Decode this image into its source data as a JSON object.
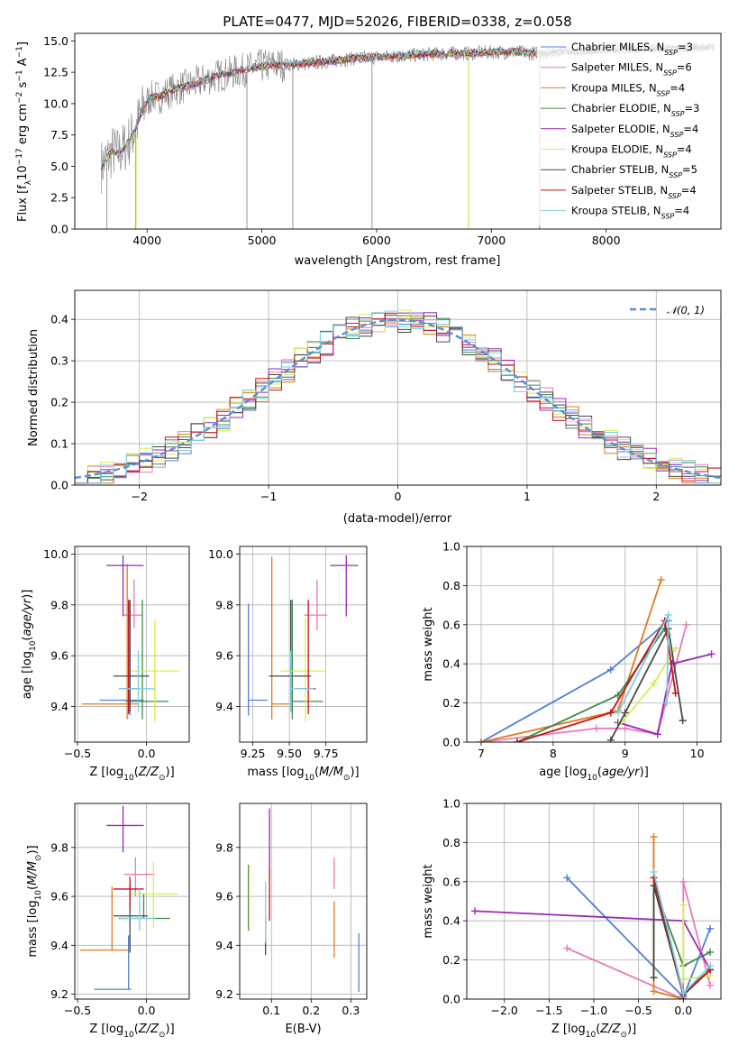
{
  "figure": {
    "title": "PLATE=0477, MJD=52026, FIBERID=0338, z=0.058"
  },
  "colors": {
    "Chabrier MILES": "#4f7fd6",
    "Salpeter MILES": "#ea7ab5",
    "Kroupa MILES": "#e07b1a",
    "Chabrier ELODIE": "#3e8a4a",
    "Salpeter ELODIE": "#9a2ab3",
    "Kroupa ELODIE": "#d6ee58",
    "Chabrier STELIB": "#484848",
    "Salpeter STELIB": "#c4121a",
    "Kroupa STELIB": "#7fcfe0",
    "data": "#808080",
    "normal": "#5b8ed6"
  },
  "chart_data": [
    {
      "id": "spectrum",
      "type": "line",
      "xlabel": "wavelength [Angstrom, rest frame]",
      "ylabel": "Flux [f_λ 10^-17 erg cm^-2 s^-1 A^-1]",
      "xlim": [
        3370,
        9000
      ],
      "ylim": [
        0,
        15.6
      ],
      "xticks": [
        4000,
        5000,
        6000,
        7000,
        8000
      ],
      "yticks": [
        0.0,
        2.5,
        5.0,
        7.5,
        10.0,
        12.5,
        15.0
      ],
      "grid": false,
      "legend_position": "right",
      "legend": [
        "Chabrier MILES, N_SSP=3",
        "Salpeter MILES, N_SSP=6",
        "Kroupa MILES, N_SSP=4",
        "Chabrier ELODIE, N_SSP=3",
        "Salpeter ELODIE, N_SSP=4",
        "Kroupa ELODIE, N_SSP=4",
        "Chabrier STELIB, N_SSP=5",
        "Salpeter STELIB, N_SSP=4",
        "Kroupa STELIB, N_SSP=4"
      ],
      "model_continuum": {
        "x": [
          3600,
          3650,
          3700,
          3750,
          3800,
          3850,
          3900,
          3950,
          4000,
          4050,
          4100,
          4200,
          4300,
          4400,
          4500,
          4600,
          4700,
          4800,
          4900,
          5000,
          5200,
          5400,
          5600,
          5800,
          6000,
          6200,
          6400,
          6600,
          6800,
          7000,
          7200,
          7400,
          7600,
          7800,
          8000,
          8200,
          8400,
          8600,
          8800,
          8950
        ],
        "y": [
          5.0,
          5.6,
          6.2,
          6.0,
          6.5,
          7.1,
          8.0,
          9.3,
          10.2,
          10.6,
          10.5,
          11.0,
          11.3,
          11.5,
          11.9,
          12.2,
          12.4,
          12.6,
          12.8,
          13.0,
          13.1,
          13.2,
          13.4,
          13.6,
          13.7,
          13.8,
          13.9,
          14.0,
          14.0,
          14.1,
          14.1,
          14.0,
          14.1,
          14.2,
          14.3,
          14.3,
          14.4,
          14.4,
          14.5,
          14.5
        ]
      },
      "data_spikes_down": [
        {
          "x": 3650,
          "y": 0.0
        },
        {
          "x": 3900,
          "y": 0.0
        },
        {
          "x": 4870,
          "y": 0.0
        },
        {
          "x": 5270,
          "y": 0.0
        },
        {
          "x": 5960,
          "y": 0.0
        },
        {
          "x": 6800,
          "y": 0.0
        },
        {
          "x": 7420,
          "y": 0.0
        }
      ]
    },
    {
      "id": "residuals",
      "type": "histogram",
      "xlabel": "(data-model)/error",
      "ylabel": "Normed distribution",
      "xlim": [
        -2.5,
        2.5
      ],
      "ylim": [
        0,
        0.47
      ],
      "xticks": [
        -2,
        -1,
        0,
        1,
        2
      ],
      "yticks": [
        0.0,
        0.1,
        0.2,
        0.3,
        0.4
      ],
      "grid": true,
      "legend_position": "top-right",
      "legend": [
        "𝒩(0, 1)"
      ],
      "bin_width": 0.1,
      "bin_start": -2.5
    },
    {
      "id": "age-vs-Z",
      "type": "errorbar",
      "xlabel": "Z [log10(Z/Z⊙)]",
      "ylabel": "age  [log10(age/yr)]",
      "xlim": [
        -0.52,
        0.31
      ],
      "ylim": [
        9.26,
        10.03
      ],
      "xticks": [
        -0.5,
        0.0
      ],
      "yticks": [
        9.4,
        9.6,
        9.8,
        10.0
      ],
      "grid": true,
      "points": [
        {
          "model": "Chabrier MILES",
          "x": -0.12,
          "xerr": [
            0.22,
            0.1
          ],
          "y": 9.425,
          "yerr": [
            0.06,
            0.38
          ]
        },
        {
          "model": "Salpeter MILES",
          "x": -0.09,
          "xerr": [
            0.08,
            0.06
          ],
          "y": 9.76,
          "yerr": [
            0.05,
            0.14
          ]
        },
        {
          "model": "Kroupa MILES",
          "x": -0.14,
          "xerr": [
            0.33,
            0.08
          ],
          "y": 9.41,
          "yerr": [
            0.06,
            0.55
          ]
        },
        {
          "model": "Chabrier ELODIE",
          "x": -0.03,
          "xerr": [
            0.12,
            0.19
          ],
          "y": 9.42,
          "yerr": [
            0.07,
            0.4
          ]
        },
        {
          "model": "Salpeter ELODIE",
          "x": -0.17,
          "xerr": [
            0.12,
            0.15
          ],
          "y": 9.955,
          "yerr": [
            0.2,
            0.04
          ]
        },
        {
          "model": "Kroupa ELODIE",
          "x": 0.06,
          "xerr": [
            0.18,
            0.18
          ],
          "y": 9.54,
          "yerr": [
            0.2,
            0.2
          ]
        },
        {
          "model": "Chabrier STELIB",
          "x": -0.12,
          "xerr": [
            0.12,
            0.14
          ],
          "y": 9.52,
          "yerr": [
            0.14,
            0.3
          ]
        },
        {
          "model": "Salpeter STELIB",
          "x": -0.13,
          "xerr": [
            0.07,
            0.06
          ],
          "y": 9.47,
          "yerr": [
            0.1,
            0.35
          ]
        },
        {
          "model": "Kroupa STELIB",
          "x": -0.06,
          "xerr": [
            0.14,
            0.12
          ],
          "y": 9.47,
          "yerr": [
            0.09,
            0.15
          ]
        }
      ]
    },
    {
      "id": "age-vs-mass",
      "type": "errorbar",
      "xlabel": "mass [log10(M/M⊙)]",
      "ylabel": "",
      "xlim": [
        9.16,
        10.03
      ],
      "ylim": [
        9.26,
        10.03
      ],
      "xticks": [
        9.25,
        9.5,
        9.75
      ],
      "yticks": [
        9.4,
        9.6,
        9.8,
        10.0
      ],
      "grid": true,
      "points": [
        {
          "model": "Chabrier MILES",
          "x": 9.22,
          "xerr": [
            0.0,
            0.13
          ],
          "y": 9.425,
          "yerr": [
            0.06,
            0.38
          ]
        },
        {
          "model": "Salpeter MILES",
          "x": 9.69,
          "xerr": [
            0.09,
            0.07
          ],
          "y": 9.76,
          "yerr": [
            0.06,
            0.14
          ]
        },
        {
          "model": "Kroupa MILES",
          "x": 9.38,
          "xerr": [
            0.0,
            0.12
          ],
          "y": 9.41,
          "yerr": [
            0.06,
            0.58
          ]
        },
        {
          "model": "Chabrier ELODIE",
          "x": 9.52,
          "xerr": [
            0.0,
            0.21
          ],
          "y": 9.42,
          "yerr": [
            0.07,
            0.4
          ]
        },
        {
          "model": "Salpeter ELODIE",
          "x": 9.89,
          "xerr": [
            0.11,
            0.08
          ],
          "y": 9.955,
          "yerr": [
            0.2,
            0.04
          ]
        },
        {
          "model": "Kroupa ELODIE",
          "x": 9.61,
          "xerr": [
            0.17,
            0.14
          ],
          "y": 9.54,
          "yerr": [
            0.2,
            0.21
          ]
        },
        {
          "model": "Chabrier STELIB",
          "x": 9.51,
          "xerr": [
            0.15,
            0.14
          ],
          "y": 9.52,
          "yerr": [
            0.14,
            0.3
          ]
        },
        {
          "model": "Salpeter STELIB",
          "x": 9.63,
          "xerr": [
            0.08,
            0.05
          ],
          "y": 9.47,
          "yerr": [
            0.1,
            0.35
          ]
        },
        {
          "model": "Kroupa STELIB",
          "x": 9.51,
          "xerr": [
            0.0,
            0.16
          ],
          "y": 9.47,
          "yerr": [
            0.09,
            0.15
          ]
        }
      ]
    },
    {
      "id": "mass-weight-vs-age",
      "type": "line",
      "xlabel": "age  [log10(age/yr)]",
      "ylabel": "mass weight",
      "xlim": [
        6.8,
        10.33
      ],
      "ylim": [
        0,
        1.0
      ],
      "xticks": [
        7,
        8,
        9,
        10
      ],
      "yticks": [
        0.0,
        0.2,
        0.4,
        0.6,
        0.8,
        1.0
      ],
      "grid": true,
      "series": [
        {
          "model": "Chabrier MILES",
          "x": [
            7.0,
            8.8,
            9.6
          ],
          "y": [
            0.0,
            0.37,
            0.62
          ]
        },
        {
          "model": "Salpeter MILES",
          "x": [
            7.0,
            8.6,
            9.0,
            9.45,
            9.85
          ],
          "y": [
            0.0,
            0.07,
            0.07,
            0.04,
            0.6
          ]
        },
        {
          "model": "Kroupa MILES",
          "x": [
            7.0,
            8.9,
            9.5
          ],
          "y": [
            0.0,
            0.16,
            0.83
          ]
        },
        {
          "model": "Chabrier ELODIE",
          "x": [
            7.5,
            8.9,
            9.55
          ],
          "y": [
            0.0,
            0.24,
            0.58
          ]
        },
        {
          "model": "Salpeter ELODIE",
          "x": [
            8.9,
            9.45,
            9.65,
            10.2
          ],
          "y": [
            0.1,
            0.04,
            0.4,
            0.45
          ]
        },
        {
          "model": "Kroupa ELODIE",
          "x": [
            8.95,
            9.4,
            9.7
          ],
          "y": [
            0.1,
            0.3,
            0.48
          ]
        },
        {
          "model": "Chabrier STELIB",
          "x": [
            8.8,
            9.0,
            9.6,
            9.8
          ],
          "y": [
            0.01,
            0.15,
            0.58,
            0.11
          ]
        },
        {
          "model": "Salpeter STELIB",
          "x": [
            7.5,
            8.8,
            9.55,
            9.7
          ],
          "y": [
            0.0,
            0.15,
            0.62,
            0.25
          ]
        },
        {
          "model": "Kroupa STELIB",
          "x": [
            8.9,
            9.6,
            9.58
          ],
          "y": [
            0.15,
            0.65,
            0.2
          ]
        }
      ]
    },
    {
      "id": "mass-vs-Z",
      "type": "errorbar",
      "xlabel": "Z [log10(Z/Z⊙)]",
      "ylabel": "mass [log10(M/M⊙)]",
      "xlim": [
        -0.52,
        0.31
      ],
      "ylim": [
        9.18,
        9.98
      ],
      "xticks": [
        -0.5,
        0.0
      ],
      "yticks": [
        9.2,
        9.4,
        9.6,
        9.8
      ],
      "grid": true,
      "points": [
        {
          "model": "Chabrier MILES",
          "x": -0.13,
          "xerr": [
            0.25,
            0.02
          ],
          "y": 9.22,
          "yerr": [
            0.0,
            0.22
          ]
        },
        {
          "model": "Salpeter MILES",
          "x": -0.08,
          "xerr": [
            0.08,
            0.14
          ],
          "y": 9.69,
          "yerr": [
            0.09,
            0.07
          ]
        },
        {
          "model": "Kroupa MILES",
          "x": -0.25,
          "xerr": [
            0.23,
            0.13
          ],
          "y": 9.38,
          "yerr": [
            0.0,
            0.26
          ]
        },
        {
          "model": "Chabrier ELODIE",
          "x": -0.02,
          "xerr": [
            0.18,
            0.19
          ],
          "y": 9.51,
          "yerr": [
            0.0,
            0.1
          ]
        },
        {
          "model": "Salpeter ELODIE",
          "x": -0.17,
          "xerr": [
            0.12,
            0.15
          ],
          "y": 9.89,
          "yerr": [
            0.11,
            0.08
          ]
        },
        {
          "model": "Kroupa ELODIE",
          "x": 0.05,
          "xerr": [
            0.17,
            0.18
          ],
          "y": 9.61,
          "yerr": [
            0.14,
            0.13
          ]
        },
        {
          "model": "Chabrier STELIB",
          "x": -0.12,
          "xerr": [
            0.12,
            0.13
          ],
          "y": 9.52,
          "yerr": [
            0.15,
            0.14
          ]
        },
        {
          "model": "Salpeter STELIB",
          "x": -0.12,
          "xerr": [
            0.12,
            0.1
          ],
          "y": 9.63,
          "yerr": [
            0.08,
            0.05
          ]
        },
        {
          "model": "Kroupa STELIB",
          "x": -0.05,
          "xerr": [
            0.14,
            0.11
          ],
          "y": 9.51,
          "yerr": [
            0.05,
            0.12
          ]
        }
      ]
    },
    {
      "id": "mass-vs-EBV",
      "type": "errorbar",
      "xlabel": "E(B-V)",
      "ylabel": "",
      "xlim": [
        0.02,
        0.34
      ],
      "ylim": [
        9.18,
        9.98
      ],
      "xticks": [
        0.1,
        0.2,
        0.3
      ],
      "yticks": [
        9.2,
        9.4,
        9.6,
        9.8
      ],
      "grid": true,
      "points": [
        {
          "model": "Chabrier MILES",
          "x": 0.32,
          "y": 9.33,
          "yerr": [
            0.12,
            0.12
          ]
        },
        {
          "model": "Salpeter MILES",
          "x": 0.258,
          "y": 9.69,
          "yerr": [
            0.06,
            0.07
          ]
        },
        {
          "model": "Kroupa MILES",
          "x": 0.258,
          "y": 9.48,
          "yerr": [
            0.13,
            0.1
          ]
        },
        {
          "model": "Chabrier ELODIE",
          "x": 0.042,
          "y": 9.58,
          "yerr": [
            0.12,
            0.15
          ]
        },
        {
          "model": "Salpeter ELODIE",
          "x": 0.095,
          "y": 9.82,
          "yerr": [
            0.1,
            0.14
          ]
        },
        {
          "model": "Kroupa ELODIE",
          "x": 0.044,
          "y": 9.62,
          "yerr": [
            0.16,
            0.11
          ]
        },
        {
          "model": "Chabrier STELIB",
          "x": 0.085,
          "y": 9.44,
          "yerr": [
            0.08,
            0.08
          ]
        },
        {
          "model": "Salpeter STELIB",
          "x": 0.095,
          "y": 9.61,
          "yerr": [
            0.11,
            0.11
          ]
        },
        {
          "model": "Kroupa STELIB",
          "x": 0.085,
          "y": 9.56,
          "yerr": [
            0.15,
            0.1
          ]
        }
      ]
    },
    {
      "id": "mass-weight-vs-Z",
      "type": "line",
      "xlabel": "Z [log10(Z/Z⊙)]",
      "ylabel": "mass weight",
      "xlim": [
        -2.42,
        0.42
      ],
      "ylim": [
        0,
        1.0
      ],
      "xticks": [
        -2.0,
        -1.5,
        -1.0,
        -0.5,
        0.0
      ],
      "yticks": [
        0.0,
        0.2,
        0.4,
        0.6,
        0.8,
        1.0
      ],
      "grid": true,
      "series": [
        {
          "model": "Chabrier MILES",
          "x": [
            -1.3,
            0.0,
            0.3
          ],
          "y": [
            0.62,
            0.01,
            0.36
          ]
        },
        {
          "model": "Salpeter MILES",
          "x": [
            -1.3,
            0.0,
            0.0,
            0.3
          ],
          "y": [
            0.26,
            0.0,
            0.6,
            0.07
          ]
        },
        {
          "model": "Kroupa MILES",
          "x": [
            -0.33,
            -0.33,
            0.0
          ],
          "y": [
            0.83,
            0.04,
            0.0
          ]
        },
        {
          "model": "Chabrier ELODIE",
          "x": [
            -0.33,
            0.0,
            0.3
          ],
          "y": [
            0.58,
            0.17,
            0.24
          ]
        },
        {
          "model": "Salpeter ELODIE",
          "x": [
            -2.33,
            0.0,
            0.3
          ],
          "y": [
            0.45,
            0.4,
            0.15
          ]
        },
        {
          "model": "Kroupa ELODIE",
          "x": [
            0.0,
            0.0,
            0.3
          ],
          "y": [
            0.48,
            0.1,
            0.12
          ]
        },
        {
          "model": "Chabrier STELIB",
          "x": [
            -0.33,
            -0.33,
            0.0,
            0.3
          ],
          "y": [
            0.11,
            0.58,
            0.02,
            0.15
          ]
        },
        {
          "model": "Salpeter STELIB",
          "x": [
            -0.33,
            0.0,
            0.3
          ],
          "y": [
            0.62,
            0.03,
            0.15
          ]
        },
        {
          "model": "Kroupa STELIB",
          "x": [
            -0.33,
            0.0,
            0.3
          ],
          "y": [
            0.65,
            0.03,
            0.17
          ]
        }
      ]
    }
  ]
}
